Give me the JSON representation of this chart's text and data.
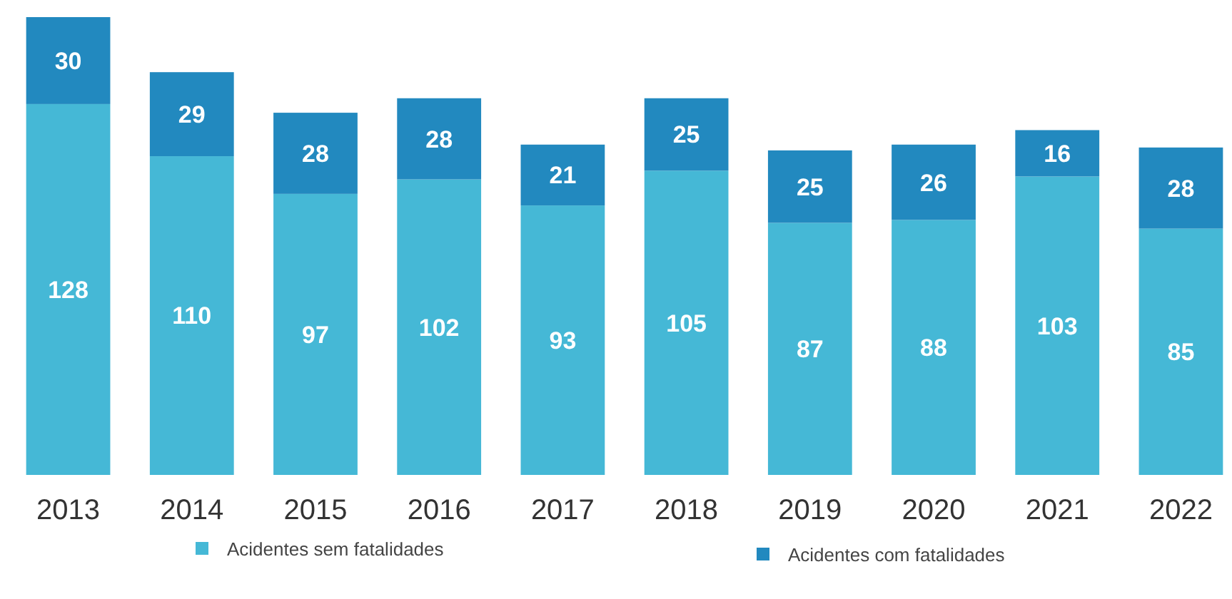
{
  "chart_data": {
    "type": "bar",
    "stacked": true,
    "data_labels": true,
    "legend": "bottom",
    "grid": false,
    "categories": [
      "2013",
      "2014",
      "2015",
      "2016",
      "2017",
      "2018",
      "2019",
      "2020",
      "2021",
      "2022"
    ],
    "series": [
      {
        "name": "Acidentes sem fatalidades",
        "color": "#45b8d6",
        "values": [
          128,
          110,
          97,
          102,
          93,
          105,
          87,
          88,
          103,
          85
        ]
      },
      {
        "name": "Acidentes com fatalidades",
        "color": "#2289bf",
        "values": [
          30,
          29,
          28,
          28,
          21,
          25,
          25,
          26,
          16,
          28
        ]
      }
    ]
  }
}
